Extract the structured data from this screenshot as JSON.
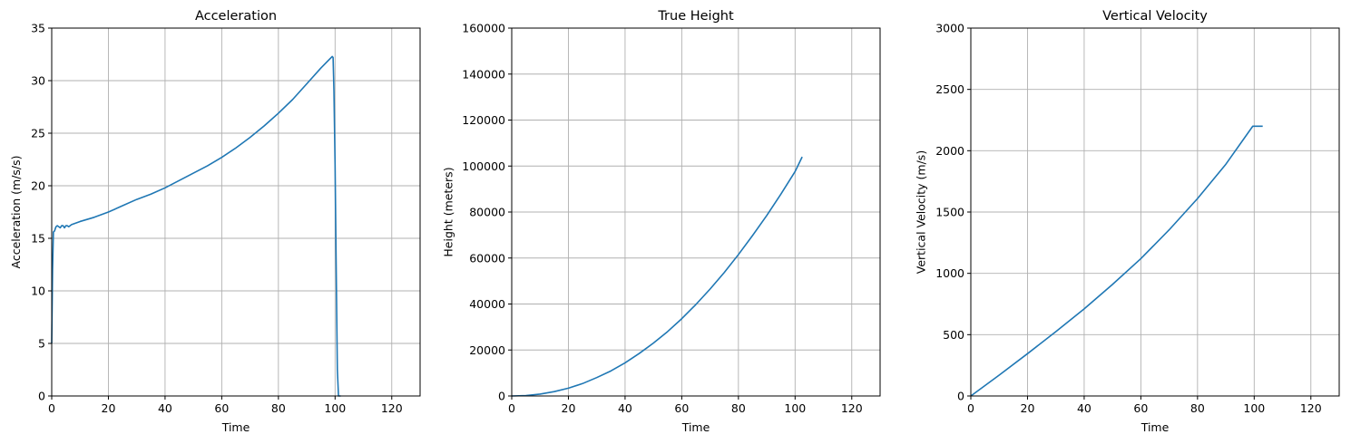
{
  "chart_data": [
    {
      "type": "line",
      "title": "Acceleration",
      "xlabel": "Time",
      "ylabel": "Acceleration (m/s/s)",
      "xlim": [
        0,
        130
      ],
      "ylim": [
        0,
        35
      ],
      "xticks": [
        0,
        20,
        40,
        60,
        80,
        100,
        120
      ],
      "yticks": [
        0,
        5,
        10,
        15,
        20,
        25,
        30,
        35
      ],
      "grid": true,
      "color": "#1f77b4",
      "series": [
        {
          "x": [
            0,
            0.3,
            0.6,
            1,
            1.5,
            2,
            2.5,
            3,
            3.5,
            4,
            4.5,
            5,
            5.5,
            6,
            7,
            10,
            15,
            20,
            25,
            30,
            35,
            40,
            45,
            50,
            55,
            60,
            65,
            70,
            75,
            80,
            85,
            90,
            95,
            99,
            99.3,
            99.6,
            100,
            100.4,
            100.8,
            101.2,
            101.6,
            102
          ],
          "y": [
            5,
            12,
            15.6,
            15.7,
            16.1,
            16.2,
            16.1,
            16.0,
            16.2,
            16.2,
            16.0,
            16.2,
            16.2,
            16.1,
            16.3,
            16.6,
            17.0,
            17.5,
            18.1,
            18.7,
            19.2,
            19.8,
            20.5,
            21.2,
            21.9,
            22.7,
            23.6,
            24.6,
            25.7,
            26.9,
            28.2,
            29.7,
            31.2,
            32.3,
            32.2,
            29.0,
            22.0,
            12.0,
            2.5,
            0,
            0,
            0
          ]
        }
      ]
    },
    {
      "type": "line",
      "title": "True Height",
      "xlabel": "Time",
      "ylabel": "Height (meters)",
      "xlim": [
        0,
        130
      ],
      "ylim": [
        0,
        160000
      ],
      "xticks": [
        0,
        20,
        40,
        60,
        80,
        100,
        120
      ],
      "yticks": [
        0,
        20000,
        40000,
        60000,
        80000,
        100000,
        120000,
        140000,
        160000
      ],
      "grid": true,
      "color": "#1f77b4",
      "series": [
        {
          "x": [
            0,
            5,
            10,
            15,
            20,
            25,
            30,
            35,
            40,
            45,
            50,
            55,
            60,
            65,
            70,
            75,
            80,
            85,
            90,
            95,
            100,
            102.5
          ],
          "y": [
            0,
            200,
            800,
            1900,
            3400,
            5400,
            8000,
            10900,
            14400,
            18500,
            23000,
            28000,
            33600,
            39800,
            46500,
            53700,
            61500,
            69800,
            78500,
            87800,
            97600,
            104000
          ]
        }
      ]
    },
    {
      "type": "line",
      "title": "Vertical Velocity",
      "xlabel": "Time",
      "ylabel": "Vertical Velocity (m/s)",
      "xlim": [
        0,
        130
      ],
      "ylim": [
        0,
        3000
      ],
      "xticks": [
        0,
        20,
        40,
        60,
        80,
        100,
        120
      ],
      "yticks": [
        0,
        500,
        1000,
        1500,
        2000,
        2500,
        3000
      ],
      "grid": true,
      "color": "#1f77b4",
      "series": [
        {
          "x": [
            0,
            10,
            20,
            30,
            40,
            50,
            60,
            70,
            80,
            90,
            99.5,
            100.5,
            103
          ],
          "y": [
            0,
            170,
            345,
            525,
            710,
            910,
            1120,
            1355,
            1610,
            1890,
            2200,
            2200,
            2200
          ]
        }
      ]
    }
  ]
}
